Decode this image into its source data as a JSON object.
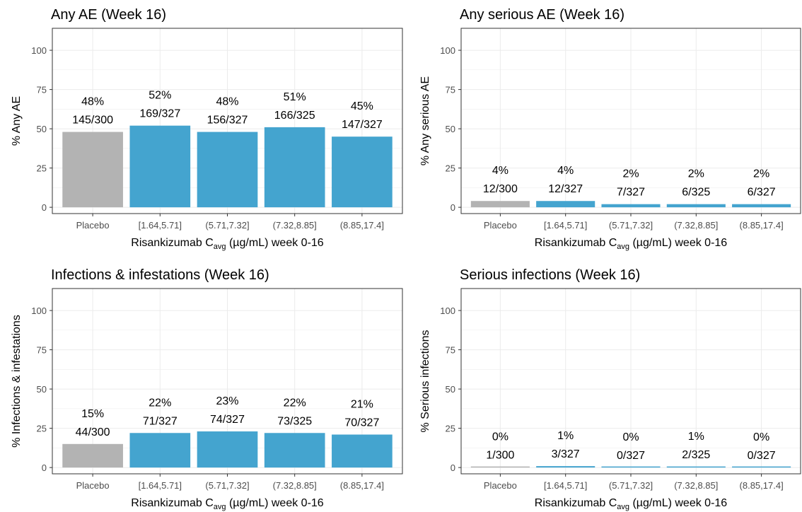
{
  "chart_data": [
    {
      "type": "bar",
      "title": "Any AE (Week 16)",
      "ylabel": "% Any AE",
      "xlabel": {
        "prefix": "Risankizumab C",
        "sub": "avg",
        "suffix": " (µg/mL) week 0-16"
      },
      "categories": [
        "Placebo",
        "[1.64,5.71]",
        "(5.71,7.32]",
        "(7.32,8.85]",
        "(8.85,17.4]"
      ],
      "values": [
        48,
        52,
        48,
        51,
        45
      ],
      "pct_labels": [
        "48%",
        "52%",
        "48%",
        "51%",
        "45%"
      ],
      "count_labels": [
        "145/300",
        "169/327",
        "156/327",
        "166/325",
        "147/327"
      ],
      "yticks": [
        0,
        25,
        50,
        75,
        100
      ],
      "ylim": [
        -4,
        114
      ],
      "grid": true
    },
    {
      "type": "bar",
      "title": "Any serious AE (Week 16)",
      "ylabel": "% Any serious AE",
      "xlabel": {
        "prefix": "Risankizumab C",
        "sub": "avg",
        "suffix": " (µg/mL) week 0-16"
      },
      "categories": [
        "Placebo",
        "[1.64,5.71]",
        "(5.71,7.32]",
        "(7.32,8.85]",
        "(8.85,17.4]"
      ],
      "values": [
        4,
        4,
        2,
        2,
        2
      ],
      "pct_labels": [
        "4%",
        "4%",
        "2%",
        "2%",
        "2%"
      ],
      "count_labels": [
        "12/300",
        "12/327",
        "7/327",
        "6/325",
        "6/327"
      ],
      "yticks": [
        0,
        25,
        50,
        75,
        100
      ],
      "ylim": [
        -4,
        114
      ],
      "grid": true
    },
    {
      "type": "bar",
      "title": "Infections & infestations (Week 16)",
      "ylabel": "% Infections & infestations",
      "xlabel": {
        "prefix": "Risankizumab C",
        "sub": "avg",
        "suffix": " (µg/mL) week 0-16"
      },
      "categories": [
        "Placebo",
        "[1.64,5.71]",
        "(5.71,7.32]",
        "(7.32,8.85]",
        "(8.85,17.4]"
      ],
      "values": [
        15,
        22,
        23,
        22,
        21
      ],
      "pct_labels": [
        "15%",
        "22%",
        "23%",
        "22%",
        "21%"
      ],
      "count_labels": [
        "44/300",
        "71/327",
        "74/327",
        "73/325",
        "70/327"
      ],
      "yticks": [
        0,
        25,
        50,
        75,
        100
      ],
      "ylim": [
        -4,
        114
      ],
      "grid": true
    },
    {
      "type": "bar",
      "title": "Serious infections (Week 16)",
      "ylabel": "% Serious infections",
      "xlabel": {
        "prefix": "Risankizumab C",
        "sub": "avg",
        "suffix": " (µg/mL) week 0-16"
      },
      "categories": [
        "Placebo",
        "[1.64,5.71]",
        "(5.71,7.32]",
        "(7.32,8.85]",
        "(8.85,17.4]"
      ],
      "values": [
        0.3,
        0.9,
        0,
        0.6,
        0
      ],
      "pct_labels": [
        "0%",
        "1%",
        "0%",
        "1%",
        "0%"
      ],
      "count_labels": [
        "1/300",
        "3/327",
        "0/327",
        "2/325",
        "0/327"
      ],
      "yticks": [
        0,
        25,
        50,
        75,
        100
      ],
      "ylim": [
        -4,
        114
      ],
      "grid": true
    }
  ],
  "colors": {
    "placebo": "#b3b3b3",
    "treatment": "#44a4cf",
    "grid": "#ebebeb",
    "panel_border": "#333333",
    "tick_text": "#4d4d4d",
    "text": "#000000"
  }
}
